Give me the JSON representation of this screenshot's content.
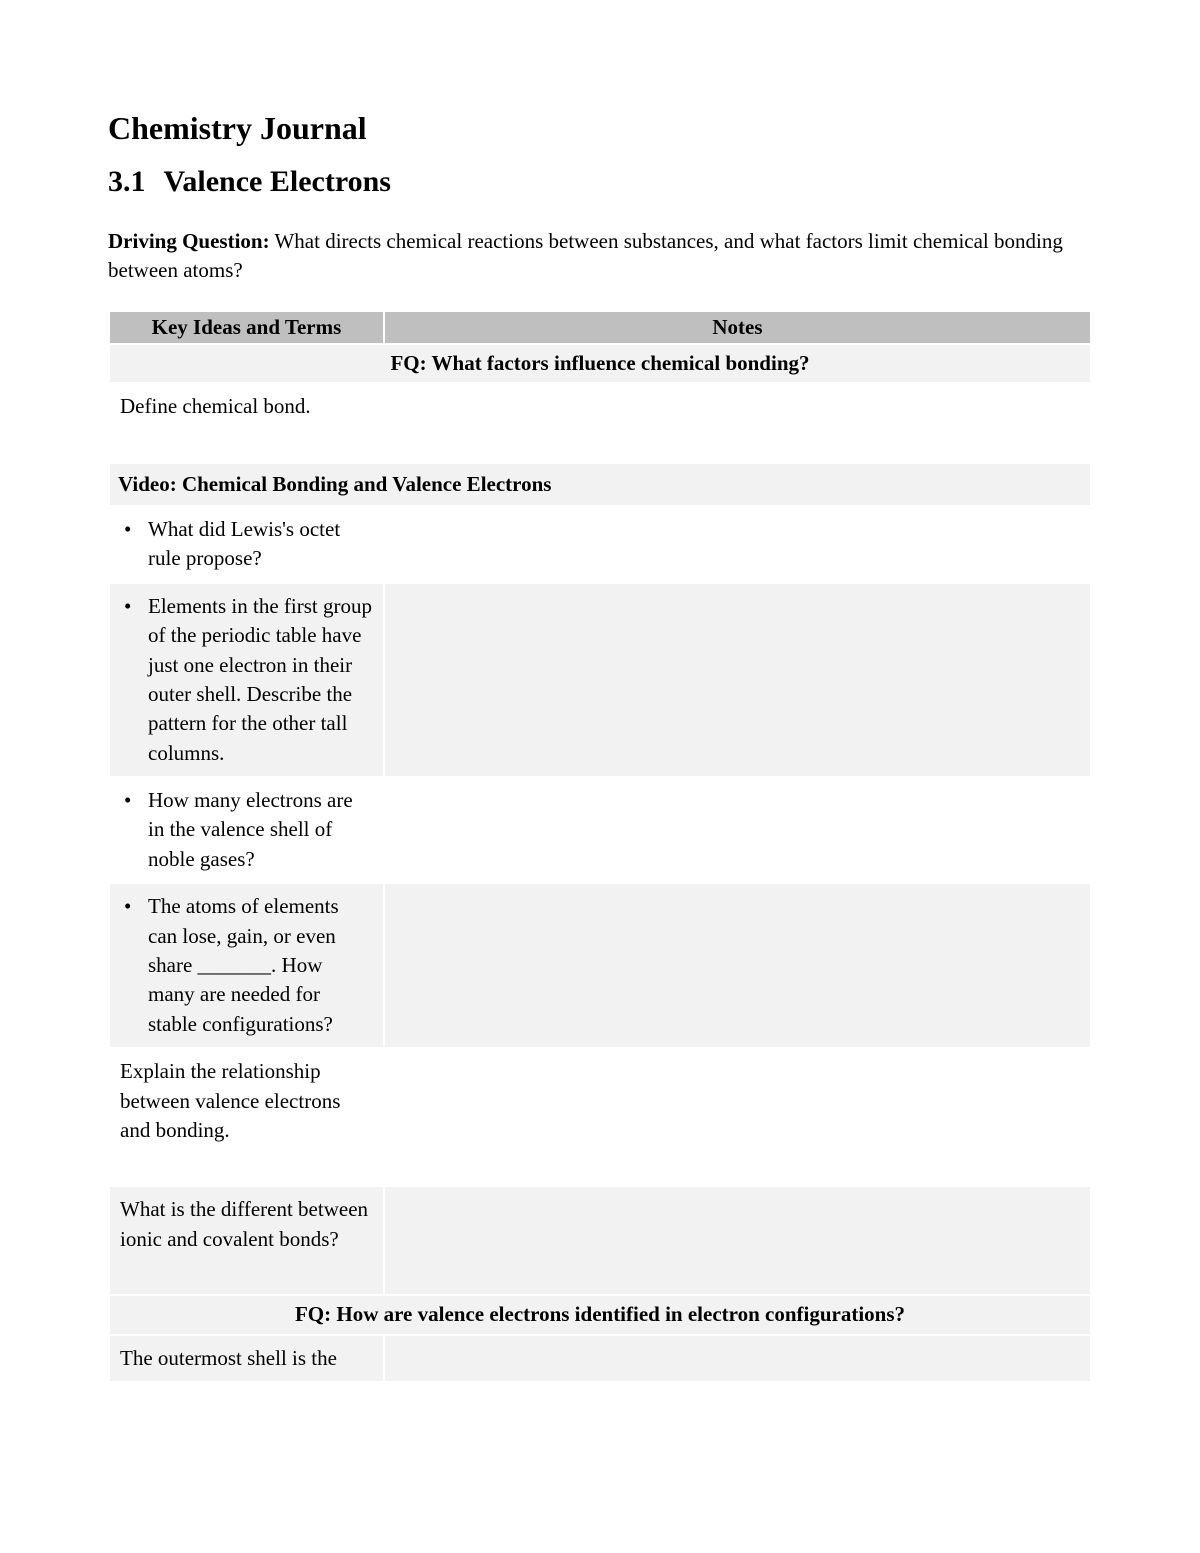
{
  "document": {
    "title": "Chemistry Journal",
    "section_number": "3.1",
    "section_title": "Valence Electrons",
    "driving_question_label": "Driving Question:",
    "driving_question_text": " What directs chemical reactions between substances, and what factors limit chemical bonding between atoms?"
  },
  "table": {
    "header_left": "Key Ideas and Terms",
    "header_right": "Notes",
    "rows": [
      {
        "type": "fq",
        "text": "FQ: What factors influence chemical bonding?"
      },
      {
        "type": "content",
        "shade": "white",
        "bullet": false,
        "left": "Define chemical bond.",
        "right": "",
        "extra_bottom": true
      },
      {
        "type": "video",
        "text": "Video: Chemical Bonding and Valence Electrons"
      },
      {
        "type": "content",
        "shade": "white",
        "bullet": true,
        "left": "What did Lewis's octet rule propose?",
        "right": ""
      },
      {
        "type": "content",
        "shade": "gray",
        "bullet": true,
        "left": "Elements in the first group of the periodic table have just one electron in their outer shell. Describe the pattern for the other tall columns.",
        "right": ""
      },
      {
        "type": "content",
        "shade": "white",
        "bullet": true,
        "left": "How many electrons are in the valence shell of noble gases?",
        "right": ""
      },
      {
        "type": "content",
        "shade": "gray",
        "bullet": true,
        "left": "The atoms of elements can lose, gain, or even share _______. How many are needed for stable configurations?",
        "right": ""
      },
      {
        "type": "content",
        "shade": "white",
        "bullet": false,
        "left": "Explain the relationship between valence electrons and bonding.",
        "right": "",
        "extra_bottom": true
      },
      {
        "type": "content",
        "shade": "gray",
        "bullet": false,
        "left": "What is the different between ionic and covalent bonds?",
        "right": "",
        "extra_bottom": true
      },
      {
        "type": "fq",
        "text": "FQ: How are valence electrons identified in electron configurations?"
      },
      {
        "type": "content",
        "shade": "gray",
        "bullet": false,
        "left": "The outermost shell is the",
        "right": ""
      }
    ]
  },
  "colors": {
    "header_bg": "#bfbfbf",
    "alt_row_bg": "#f2f2f2",
    "white_bg": "#ffffff",
    "text": "#000000",
    "border": "#ffffff"
  },
  "typography": {
    "font_family": "Times New Roman",
    "title_size_pt": 24,
    "heading_size_pt": 22,
    "body_size_pt": 16
  }
}
